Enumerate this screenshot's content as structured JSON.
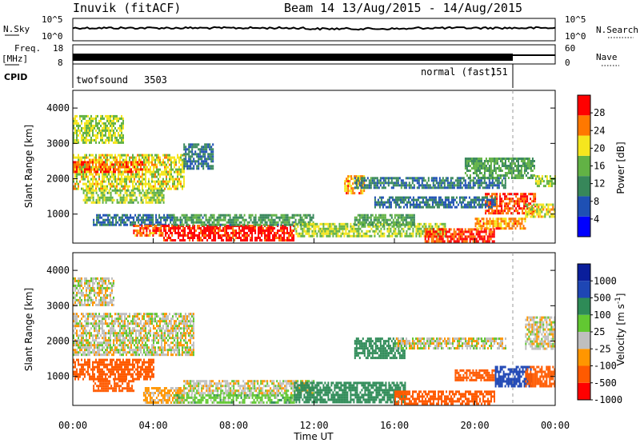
{
  "header": {
    "station": "Inuvik (fitACF)",
    "beam_date": "Beam 14 13/Aug/2015 - 14/Aug/2015"
  },
  "strips": {
    "nsky_label": "N.Sky",
    "nsearch_label": "N.Search",
    "freq_label": "Freq.",
    "freq_unit": "[MHz]",
    "nave_label": "Nave",
    "cpid_label": "CPID",
    "nsky_ticks": [
      "10^5",
      "10^0"
    ],
    "nsearch_ticks": [
      "10^5",
      "10^0"
    ],
    "freq_ticks": [
      "18",
      "8"
    ],
    "nave_ticks": [
      "60",
      "0"
    ],
    "cpid_segments": [
      {
        "name": "twofsound",
        "id": "3503",
        "start_hour": 0,
        "end_hour": 22
      },
      {
        "name": "normal (fast)",
        "id": "151",
        "start_hour": 22,
        "end_hour": 24
      }
    ]
  },
  "chart_data": [
    {
      "type": "heatmap",
      "title": "",
      "xlabel": "",
      "ylabel": "Slant Range [km]",
      "xlim": [
        0,
        24
      ],
      "ylim": [
        180,
        4500
      ],
      "yticks": [
        1000,
        2000,
        3000,
        4000
      ],
      "colorbar": {
        "label": "Power [dB]",
        "ticks": [
          4,
          8,
          12,
          16,
          20,
          24,
          28
        ],
        "range": [
          0,
          32
        ],
        "colors": [
          "#0000ff",
          "#1e50b4",
          "#37875a",
          "#62b245",
          "#f5e61e",
          "#ff7800",
          "#ff0000"
        ]
      },
      "regions": [
        {
          "t0": 0.0,
          "t1": 5.5,
          "r0": 1700,
          "r1": 2700,
          "value": 20
        },
        {
          "t0": 0.0,
          "t1": 3.5,
          "r0": 2200,
          "r1": 2500,
          "value": 26
        },
        {
          "t0": 0.5,
          "t1": 4.5,
          "r0": 1300,
          "r1": 1700,
          "value": 17
        },
        {
          "t0": 1.0,
          "t1": 5.0,
          "r0": 700,
          "r1": 1000,
          "value": 9
        },
        {
          "t0": 3.0,
          "t1": 4.5,
          "r0": 400,
          "r1": 700,
          "value": 26
        },
        {
          "t0": 4.5,
          "t1": 11.0,
          "r0": 250,
          "r1": 700,
          "value": 30
        },
        {
          "t0": 5.0,
          "t1": 12.0,
          "r0": 700,
          "r1": 1000,
          "value": 13
        },
        {
          "t0": 11.0,
          "t1": 18.5,
          "r0": 350,
          "r1": 750,
          "value": 18
        },
        {
          "t0": 14.0,
          "t1": 17.0,
          "r0": 700,
          "r1": 1000,
          "value": 14
        },
        {
          "t0": 17.5,
          "t1": 21.0,
          "r0": 250,
          "r1": 600,
          "value": 29
        },
        {
          "t0": 20.0,
          "t1": 22.5,
          "r0": 600,
          "r1": 900,
          "value": 24
        },
        {
          "t0": 20.5,
          "t1": 23.0,
          "r0": 1000,
          "r1": 1600,
          "value": 27
        },
        {
          "t0": 13.5,
          "t1": 14.5,
          "r0": 1600,
          "r1": 2100,
          "value": 24
        },
        {
          "t0": 14.0,
          "t1": 21.5,
          "r0": 1750,
          "r1": 2050,
          "value": 10
        },
        {
          "t0": 15.0,
          "t1": 21.0,
          "r0": 1200,
          "r1": 1500,
          "value": 9
        },
        {
          "t0": 19.5,
          "t1": 23.0,
          "r0": 2000,
          "r1": 2600,
          "value": 14
        },
        {
          "t0": 22.5,
          "t1": 24.0,
          "r0": 900,
          "r1": 1300,
          "value": 20
        },
        {
          "t0": 23.0,
          "t1": 24.0,
          "r0": 1800,
          "r1": 2100,
          "value": 18
        },
        {
          "t0": 0.0,
          "t1": 2.5,
          "r0": 3000,
          "r1": 3800,
          "value": 18
        },
        {
          "t0": 5.5,
          "t1": 7.0,
          "r0": 2300,
          "r1": 3000,
          "value": 10
        }
      ]
    },
    {
      "type": "heatmap",
      "title": "",
      "xlabel": "Time UT",
      "ylabel": "Slant Range [km]",
      "xlim": [
        0,
        24
      ],
      "ylim": [
        180,
        4500
      ],
      "xticks": [
        "00:00",
        "04:00",
        "08:00",
        "12:00",
        "16:00",
        "20:00",
        "00:00"
      ],
      "yticks": [
        1000,
        2000,
        3000,
        4000
      ],
      "colorbar": {
        "label": "Velocity [m s^-1]",
        "tick_labels": [
          "1000",
          "500",
          "100",
          "25",
          "-25",
          "-100",
          "-500",
          "-1000"
        ],
        "colors": [
          "#ff0000",
          "#ff5a00",
          "#ff9600",
          "#bfbfbf",
          "#62c832",
          "#2e8b57",
          "#1e46b4",
          "#0a1e9b"
        ]
      },
      "regions": [
        {
          "t0": 0.0,
          "t1": 6.0,
          "r0": 1600,
          "r1": 2800,
          "value": 0
        },
        {
          "t0": 0.0,
          "t1": 4.0,
          "r0": 900,
          "r1": 1500,
          "value": -200
        },
        {
          "t0": 1.0,
          "t1": 3.0,
          "r0": 600,
          "r1": 900,
          "value": -200
        },
        {
          "t0": 3.5,
          "t1": 5.5,
          "r0": 250,
          "r1": 700,
          "value": -50
        },
        {
          "t0": 5.0,
          "t1": 11.0,
          "r0": 250,
          "r1": 500,
          "value": 60
        },
        {
          "t0": 5.5,
          "t1": 12.0,
          "r0": 500,
          "r1": 900,
          "value": 0
        },
        {
          "t0": 11.0,
          "t1": 16.5,
          "r0": 300,
          "r1": 850,
          "value": 200
        },
        {
          "t0": 16.0,
          "t1": 21.0,
          "r0": 250,
          "r1": 600,
          "value": -200
        },
        {
          "t0": 14.0,
          "t1": 16.5,
          "r0": 1500,
          "r1": 2100,
          "value": 200
        },
        {
          "t0": 16.0,
          "t1": 21.5,
          "r0": 1800,
          "r1": 2100,
          "value": 0
        },
        {
          "t0": 19.0,
          "t1": 21.0,
          "r0": 900,
          "r1": 1200,
          "value": -200
        },
        {
          "t0": 21.0,
          "t1": 22.8,
          "r0": 700,
          "r1": 1300,
          "value": 600
        },
        {
          "t0": 22.5,
          "t1": 24.0,
          "r0": 700,
          "r1": 1300,
          "value": -300
        },
        {
          "t0": 22.5,
          "t1": 24.0,
          "r0": 1800,
          "r1": 2700,
          "value": 0
        },
        {
          "t0": 0.0,
          "t1": 2.0,
          "r0": 3000,
          "r1": 3800,
          "value": 0
        }
      ]
    }
  ]
}
